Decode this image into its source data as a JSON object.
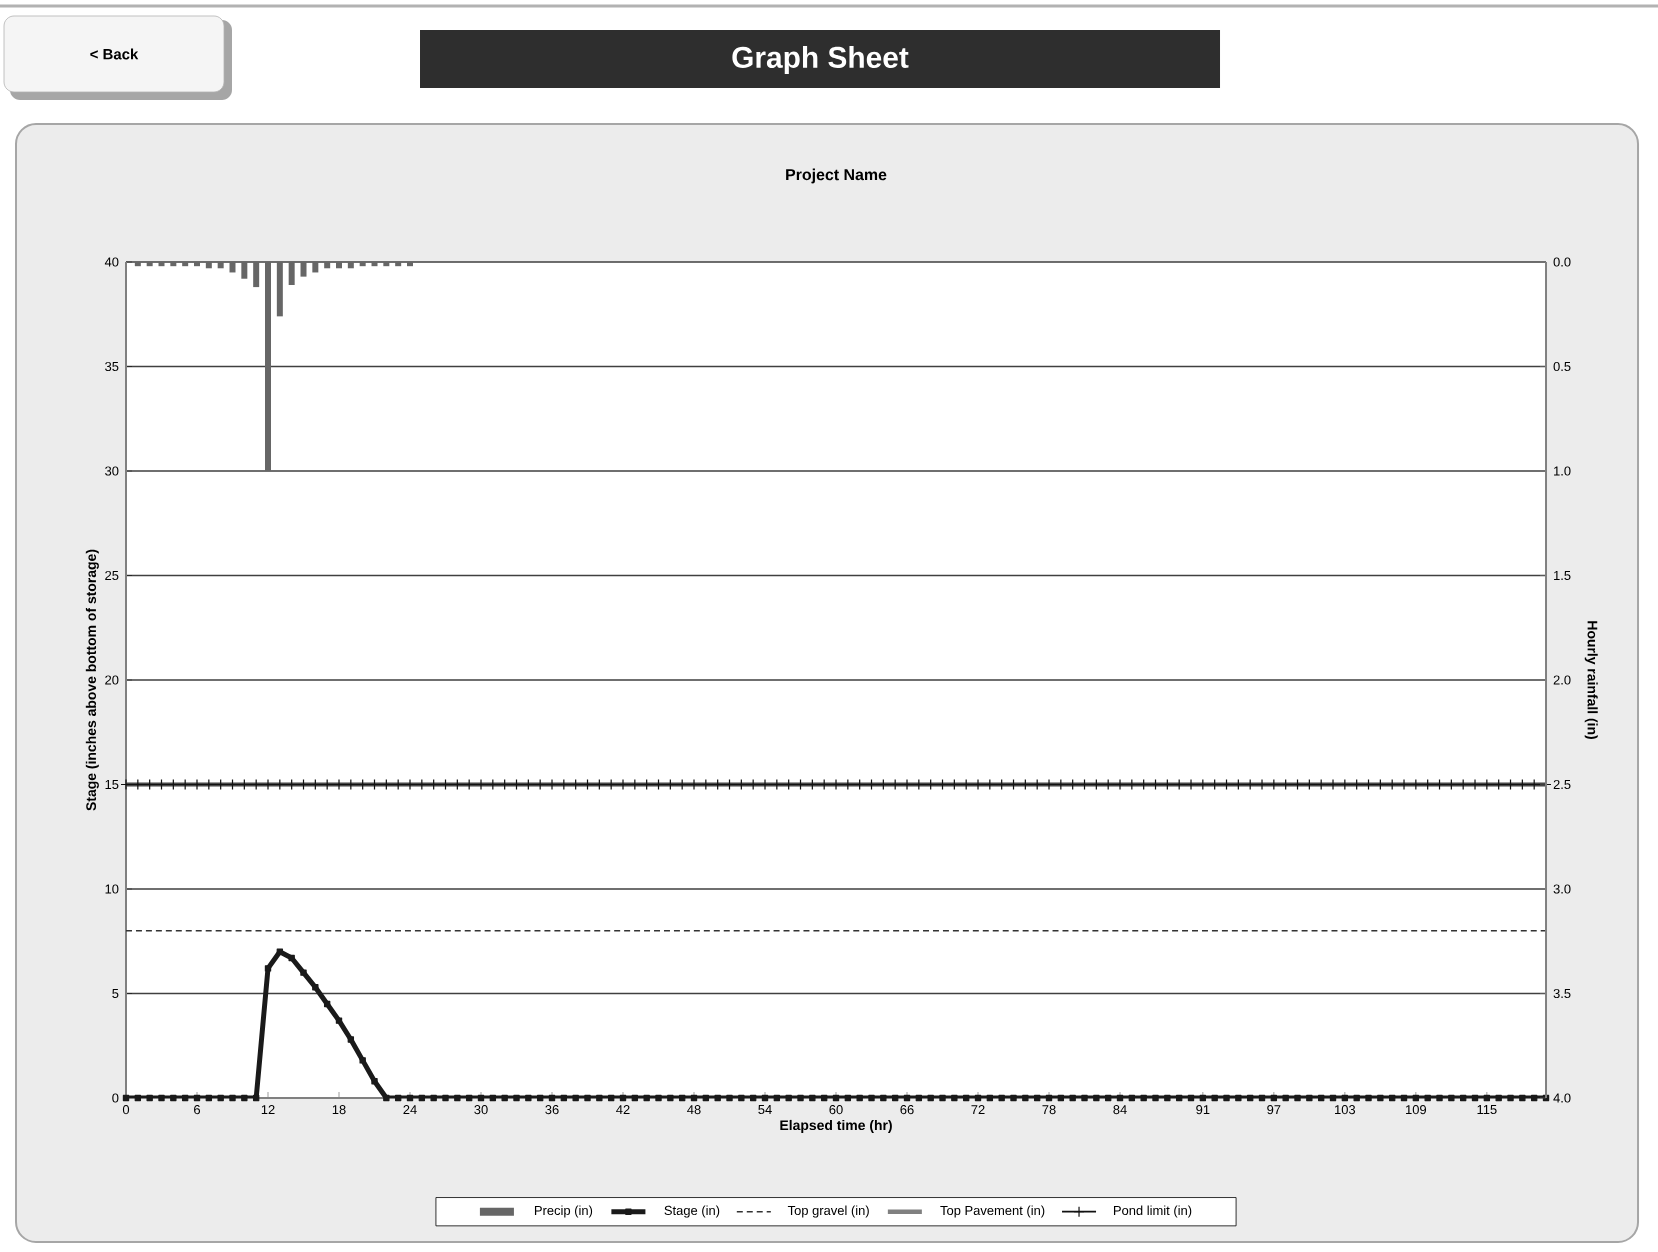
{
  "chart_data": {
    "type": "line",
    "title": "Graph Sheet",
    "subtitle": "Project Name",
    "annotations": [
      "< Back"
    ],
    "xlabel": "Elapsed time (hr)",
    "ylabel": "Stage (inches above bottom of storage)",
    "y2label": "Hourly rainfall (in)",
    "x": [
      0,
      1,
      2,
      3,
      4,
      5,
      6,
      7,
      8,
      9,
      10,
      11,
      12,
      13,
      14,
      15,
      16,
      17,
      18,
      19,
      20,
      21,
      22,
      23,
      24,
      25,
      26,
      27,
      28,
      29,
      30,
      31,
      32,
      33,
      34,
      35,
      36,
      37,
      38,
      39,
      40,
      41,
      42,
      43,
      44,
      45,
      46,
      47,
      48,
      49,
      50,
      51,
      52,
      53,
      54,
      55,
      56,
      57,
      58,
      59,
      60,
      61,
      62,
      63,
      64,
      65,
      66,
      67,
      68,
      69,
      70,
      71,
      72,
      73,
      74,
      75,
      76,
      77,
      78,
      79,
      80,
      81,
      82,
      83,
      84,
      85,
      86,
      87,
      88,
      89,
      90,
      91,
      92,
      93,
      94,
      95,
      96,
      97,
      98,
      99,
      100,
      101,
      102,
      103,
      104,
      105,
      106,
      107,
      108,
      109,
      110,
      111,
      112,
      113,
      114,
      115,
      116,
      117,
      118,
      119,
      120
    ],
    "xlim": [
      0,
      120
    ],
    "xticks": [
      0,
      6,
      12,
      18,
      24,
      30,
      36,
      42,
      48,
      54,
      60,
      66,
      72,
      78,
      84,
      91,
      97,
      103,
      109,
      115
    ],
    "ylim": [
      0,
      40
    ],
    "yticks": [
      0,
      5,
      10,
      15,
      20,
      25,
      30,
      35,
      40
    ],
    "y2lim": [
      4,
      0
    ],
    "y2ticks": [
      {
        "value": 0,
        "label": "0.0"
      },
      {
        "value": 0.5,
        "label": "0.5"
      },
      {
        "value": 1,
        "label": "1.0"
      },
      {
        "value": 1.5,
        "label": "1.5"
      },
      {
        "value": 2,
        "label": "2.0"
      },
      {
        "value": 2.5,
        "label": "2.5"
      },
      {
        "value": 3,
        "label": "3.0"
      },
      {
        "value": 3.5,
        "label": "3.5"
      },
      {
        "value": 4,
        "label": "4.0"
      }
    ],
    "grid": "y",
    "legend": "bottom",
    "series": [
      {
        "name": "Precip (in)",
        "type": "bar",
        "axis": "y2",
        "color": "#666666",
        "x": [
          1,
          2,
          3,
          4,
          5,
          6,
          7,
          8,
          9,
          10,
          11,
          12,
          13,
          14,
          15,
          16,
          17,
          18,
          19,
          20,
          21,
          22,
          23,
          24
        ],
        "values": [
          0.02,
          0.02,
          0.02,
          0.02,
          0.02,
          0.02,
          0.03,
          0.03,
          0.05,
          0.08,
          0.12,
          1.0,
          0.26,
          0.11,
          0.07,
          0.05,
          0.03,
          0.03,
          0.03,
          0.02,
          0.02,
          0.02,
          0.02,
          0.02
        ]
      },
      {
        "name": "Stage (in)",
        "color": "#1a1a1a",
        "marker": "square",
        "line_style": "solid",
        "values": [
          0,
          0,
          0,
          0,
          0,
          0,
          0,
          0,
          0,
          0,
          0,
          0,
          6.2,
          7.0,
          6.7,
          6.0,
          5.3,
          4.5,
          3.7,
          2.8,
          1.8,
          0.8,
          0,
          0,
          0,
          0,
          0,
          0,
          0,
          0,
          0,
          0,
          0,
          0,
          0,
          0,
          0,
          0,
          0,
          0,
          0,
          0,
          0,
          0,
          0,
          0,
          0,
          0,
          0,
          0,
          0,
          0,
          0,
          0,
          0,
          0,
          0,
          0,
          0,
          0,
          0,
          0,
          0,
          0,
          0,
          0,
          0,
          0,
          0,
          0,
          0,
          0,
          0,
          0,
          0,
          0,
          0,
          0,
          0,
          0,
          0,
          0,
          0,
          0,
          0,
          0,
          0,
          0,
          0,
          0,
          0,
          0,
          0,
          0,
          0,
          0,
          0,
          0,
          0,
          0,
          0,
          0,
          0,
          0,
          0,
          0,
          0,
          0,
          0,
          0,
          0,
          0,
          0,
          0,
          0,
          0,
          0,
          0,
          0,
          0,
          0
        ]
      },
      {
        "name": "Top gravel (in)",
        "color": "#333333",
        "line_style": "dashed",
        "x": [
          0,
          120
        ],
        "values": [
          8,
          8
        ]
      },
      {
        "name": "Top Pavement (in)",
        "color": "#808080",
        "line_style": "solid",
        "x": [
          0,
          120
        ],
        "values": [
          15,
          15
        ]
      },
      {
        "name": "Pond limit (in)",
        "color": "#111111",
        "marker": "cross",
        "line_style": "solid",
        "values": [
          15,
          15,
          15,
          15,
          15,
          15,
          15,
          15,
          15,
          15,
          15,
          15,
          15,
          15,
          15,
          15,
          15,
          15,
          15,
          15,
          15,
          15,
          15,
          15,
          15,
          15,
          15,
          15,
          15,
          15,
          15,
          15,
          15,
          15,
          15,
          15,
          15,
          15,
          15,
          15,
          15,
          15,
          15,
          15,
          15,
          15,
          15,
          15,
          15,
          15,
          15,
          15,
          15,
          15,
          15,
          15,
          15,
          15,
          15,
          15,
          15,
          15,
          15,
          15,
          15,
          15,
          15,
          15,
          15,
          15,
          15,
          15,
          15,
          15,
          15,
          15,
          15,
          15,
          15,
          15,
          15,
          15,
          15,
          15,
          15,
          15,
          15,
          15,
          15,
          15,
          15,
          15,
          15,
          15,
          15,
          15,
          15,
          15,
          15,
          15,
          15,
          15,
          15,
          15,
          15,
          15,
          15,
          15,
          15,
          15,
          15,
          15,
          15,
          15,
          15,
          15,
          15,
          15,
          15,
          15,
          15
        ]
      }
    ]
  }
}
